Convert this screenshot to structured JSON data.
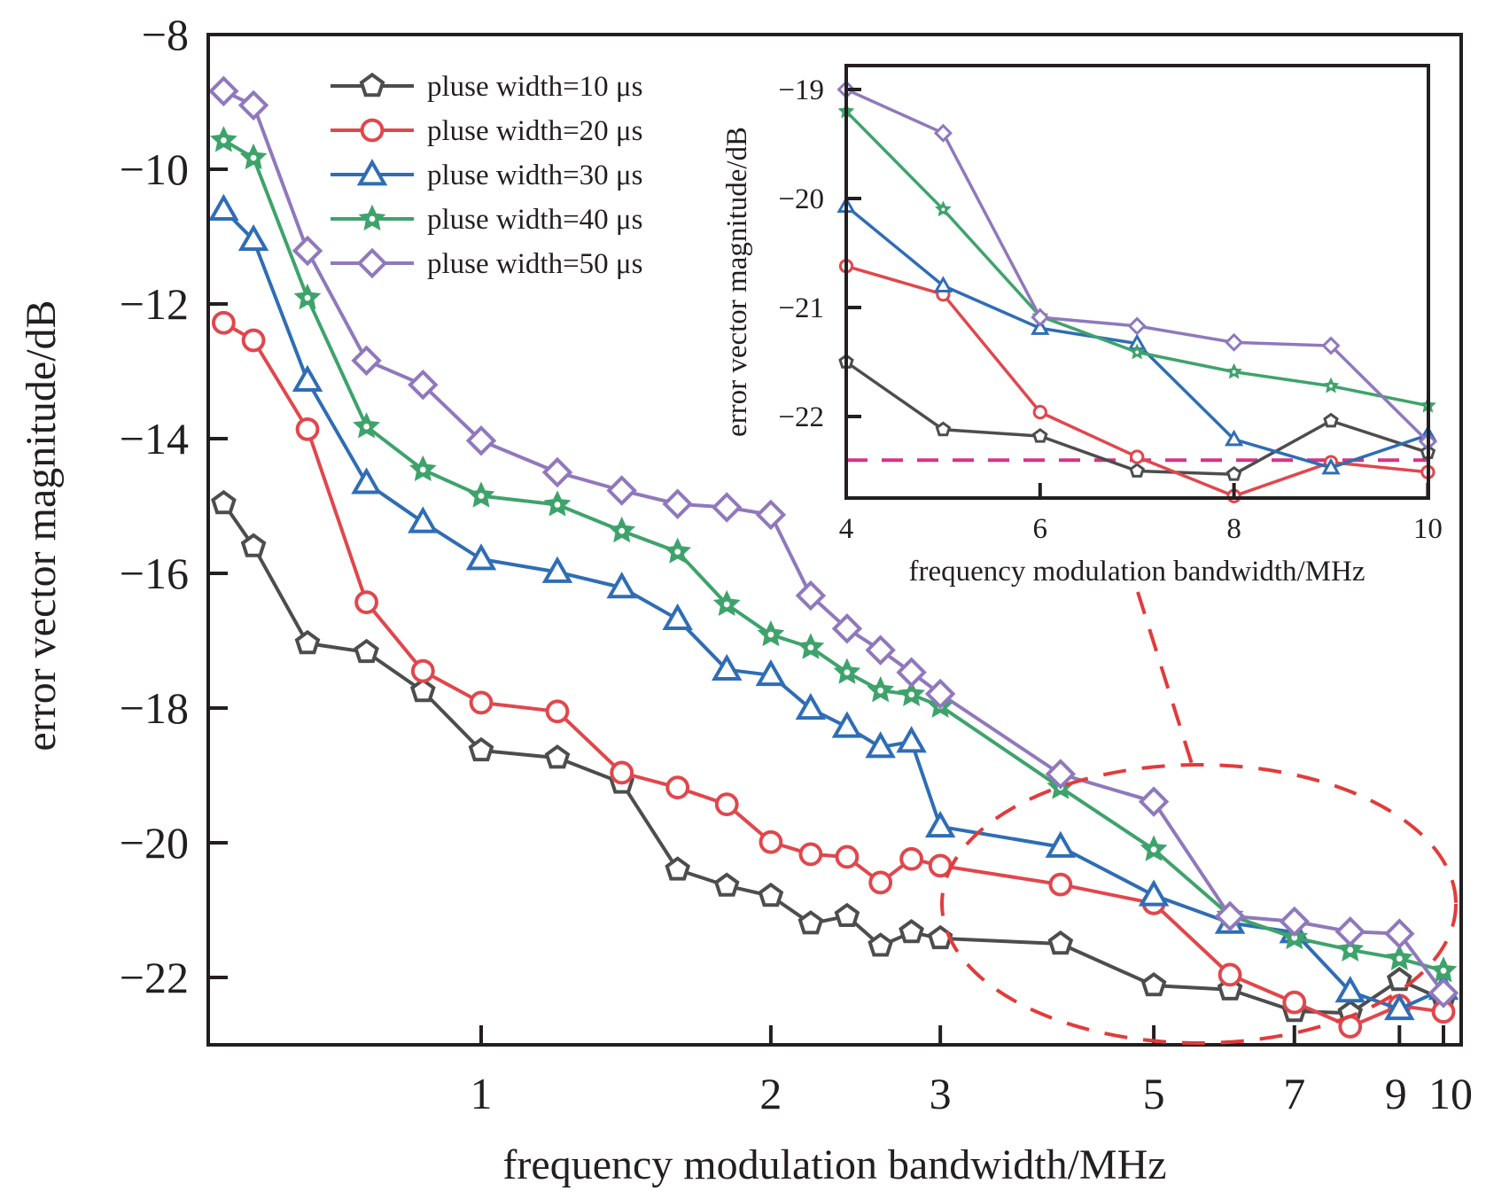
{
  "chart_data": [
    {
      "id": "main",
      "type": "line",
      "title": "",
      "xlabel": "frequency modulation bandwidth/MHz",
      "ylabel": "error vector magnitude/dB",
      "xscale": "log",
      "xlim": [
        0.52,
        10.7
      ],
      "ylim": [
        -23,
        -8
      ],
      "xticks": [
        1,
        2,
        3,
        5,
        7,
        9,
        10
      ],
      "xtick_labels": [
        "1",
        "2",
        "3",
        "5",
        "7",
        "9",
        "10"
      ],
      "yticks": [
        -8,
        -10,
        -12,
        -14,
        -16,
        -18,
        -20,
        -22
      ],
      "ytick_labels": [
        "−8",
        "−10",
        "−12",
        "−14",
        "−16",
        "−18",
        "−20",
        "−22"
      ],
      "grid": false,
      "legend_position": "top-center",
      "x": [
        0.54,
        0.58,
        0.66,
        0.76,
        0.87,
        1.0,
        1.2,
        1.4,
        1.6,
        1.8,
        2.0,
        2.2,
        2.4,
        2.6,
        2.8,
        3,
        4,
        5,
        6,
        7,
        8,
        9,
        10
      ],
      "series": [
        {
          "name": "pluse width=10 μs",
          "color": "#4d4d4d",
          "marker": "pentagon",
          "values": [
            -14.96,
            -15.6,
            -17.04,
            -17.17,
            -17.75,
            -18.63,
            -18.74,
            -19.11,
            -20.4,
            -20.64,
            -20.79,
            -21.2,
            -21.09,
            -21.53,
            -21.33,
            -21.42,
            -21.5,
            -22.12,
            -22.18,
            -22.5,
            -22.53,
            -22.04,
            -22.33
          ]
        },
        {
          "name": "pluse width=20 μs",
          "color": "#e0474c",
          "marker": "circle",
          "values": [
            -12.28,
            -12.54,
            -13.86,
            -16.43,
            -17.45,
            -17.92,
            -18.05,
            -18.96,
            -19.18,
            -19.43,
            -19.99,
            -20.17,
            -20.21,
            -20.59,
            -20.24,
            -20.34,
            -20.62,
            -20.9,
            -21.96,
            -22.37,
            -22.73,
            -22.42,
            -22.51
          ]
        },
        {
          "name": "pluse width=30 μs",
          "color": "#2f6db5",
          "marker": "triangle",
          "values": [
            -10.6,
            -11.05,
            -13.14,
            -14.66,
            -15.24,
            -15.79,
            -15.98,
            -16.21,
            -16.68,
            -17.43,
            -17.51,
            -18.01,
            -18.28,
            -18.58,
            -18.5,
            -19.76,
            -20.06,
            -20.78,
            -21.19,
            -21.33,
            -22.21,
            -22.47,
            -22.17
          ]
        },
        {
          "name": "pluse width=40 μs",
          "color": "#3ea36b",
          "marker": "star",
          "values": [
            -9.57,
            -9.83,
            -11.91,
            -13.82,
            -14.46,
            -14.85,
            -14.98,
            -15.37,
            -15.68,
            -16.46,
            -16.91,
            -17.1,
            -17.47,
            -17.74,
            -17.8,
            -17.97,
            -19.18,
            -20.1,
            -21.08,
            -21.41,
            -21.59,
            -21.72,
            -21.9
          ]
        },
        {
          "name": "pluse width=50 μs",
          "color": "#9078bd",
          "marker": "diamond",
          "values": [
            -8.84,
            -9.05,
            -11.21,
            -12.84,
            -13.2,
            -14.03,
            -14.5,
            -14.77,
            -14.97,
            -15.02,
            -15.13,
            -16.33,
            -16.82,
            -17.14,
            -17.47,
            -17.79,
            -18.98,
            -19.39,
            -21.09,
            -21.17,
            -21.32,
            -21.35,
            -22.23
          ]
        }
      ],
      "annotations": [
        {
          "type": "dashed-ellipse",
          "color": "#e23b3b",
          "description": "highlights region 3-10 MHz, linked to inset"
        }
      ]
    },
    {
      "id": "inset",
      "type": "line",
      "title": "",
      "xlabel": "frequency modulation bandwidth/MHz",
      "ylabel": "error vector magnitude/dB",
      "xscale": "linear",
      "xlim": [
        4,
        10
      ],
      "ylim": [
        -22.75,
        -18.78
      ],
      "xticks": [
        4,
        6,
        8,
        10
      ],
      "xtick_labels": [
        "4",
        "6",
        "8",
        "10"
      ],
      "yticks": [
        -19,
        -20,
        -21,
        -22
      ],
      "ytick_labels": [
        "−19",
        "−20",
        "−21",
        "−22"
      ],
      "grid": false,
      "x": [
        4,
        5,
        6,
        7,
        8,
        9,
        10
      ],
      "series": [
        {
          "name": "pluse width=10 μs",
          "color": "#4d4d4d",
          "marker": "pentagon",
          "values": [
            -21.5,
            -22.12,
            -22.18,
            -22.5,
            -22.53,
            -22.04,
            -22.33
          ]
        },
        {
          "name": "pluse width=20 μs",
          "color": "#e0474c",
          "marker": "circle",
          "values": [
            -20.62,
            -20.88,
            -21.96,
            -22.37,
            -22.73,
            -22.42,
            -22.51
          ]
        },
        {
          "name": "pluse width=30 μs",
          "color": "#2f6db5",
          "marker": "triangle",
          "values": [
            -20.07,
            -20.8,
            -21.19,
            -21.33,
            -22.21,
            -22.47,
            -22.17
          ]
        },
        {
          "name": "pluse width=40 μs",
          "color": "#3ea36b",
          "marker": "star",
          "values": [
            -19.2,
            -20.1,
            -21.08,
            -21.41,
            -21.59,
            -21.72,
            -21.9
          ]
        },
        {
          "name": "pluse width=50 μs",
          "color": "#9078bd",
          "marker": "diamond",
          "values": [
            -19.0,
            -19.4,
            -21.09,
            -21.17,
            -21.32,
            -21.35,
            -22.23
          ]
        }
      ],
      "reference_line": {
        "y": -22.4,
        "style": "dashed",
        "color": "#d63384"
      }
    }
  ]
}
